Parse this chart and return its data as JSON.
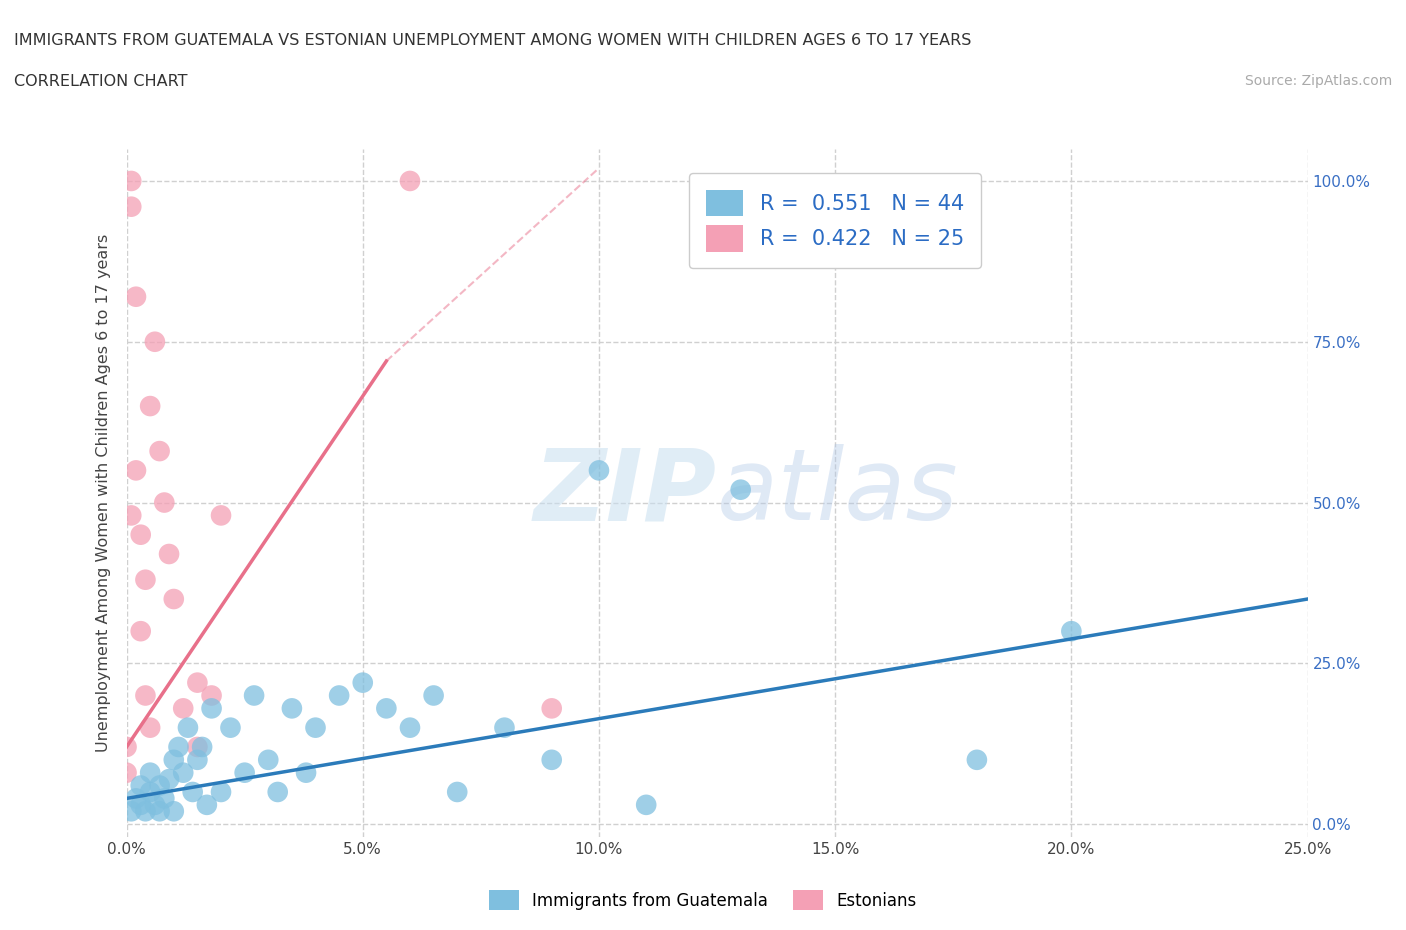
{
  "title_line1": "IMMIGRANTS FROM GUATEMALA VS ESTONIAN UNEMPLOYMENT AMONG WOMEN WITH CHILDREN AGES 6 TO 17 YEARS",
  "title_line2": "CORRELATION CHART",
  "source": "Source: ZipAtlas.com",
  "ylabel": "Unemployment Among Women with Children Ages 6 to 17 years",
  "xlim": [
    0.0,
    0.25
  ],
  "ylim": [
    -0.02,
    1.05
  ],
  "xtick_vals": [
    0.0,
    0.05,
    0.1,
    0.15,
    0.2,
    0.25
  ],
  "ytick_vals": [
    0.0,
    0.25,
    0.5,
    0.75,
    1.0
  ],
  "ytick_right_labels": [
    "0.0%",
    "25.0%",
    "50.0%",
    "75.0%",
    "100.0%"
  ],
  "blue_color": "#7fbfdf",
  "pink_color": "#f4a0b5",
  "blue_line_color": "#2b7bba",
  "pink_line_color": "#e8708a",
  "blue_R": 0.551,
  "blue_N": 44,
  "pink_R": 0.422,
  "pink_N": 25,
  "legend_label_blue": "Immigrants from Guatemala",
  "legend_label_pink": "Estonians",
  "watermark_zip": "ZIP",
  "watermark_atlas": "atlas",
  "grid_color": "#d0d0d0",
  "blue_scatter_x": [
    0.001,
    0.002,
    0.003,
    0.003,
    0.004,
    0.005,
    0.005,
    0.006,
    0.007,
    0.007,
    0.008,
    0.009,
    0.01,
    0.01,
    0.011,
    0.012,
    0.013,
    0.014,
    0.015,
    0.016,
    0.017,
    0.018,
    0.02,
    0.022,
    0.025,
    0.027,
    0.03,
    0.032,
    0.035,
    0.038,
    0.04,
    0.045,
    0.05,
    0.055,
    0.06,
    0.065,
    0.07,
    0.08,
    0.09,
    0.1,
    0.11,
    0.13,
    0.18,
    0.2
  ],
  "blue_scatter_y": [
    0.02,
    0.04,
    0.03,
    0.06,
    0.02,
    0.05,
    0.08,
    0.03,
    0.06,
    0.02,
    0.04,
    0.07,
    0.1,
    0.02,
    0.12,
    0.08,
    0.15,
    0.05,
    0.1,
    0.12,
    0.03,
    0.18,
    0.05,
    0.15,
    0.08,
    0.2,
    0.1,
    0.05,
    0.18,
    0.08,
    0.15,
    0.2,
    0.22,
    0.18,
    0.15,
    0.2,
    0.05,
    0.15,
    0.1,
    0.55,
    0.03,
    0.52,
    0.1,
    0.3
  ],
  "pink_scatter_x": [
    0.0,
    0.0,
    0.001,
    0.001,
    0.001,
    0.002,
    0.002,
    0.003,
    0.003,
    0.004,
    0.004,
    0.005,
    0.005,
    0.006,
    0.007,
    0.008,
    0.009,
    0.01,
    0.012,
    0.015,
    0.015,
    0.018,
    0.02,
    0.06,
    0.09
  ],
  "pink_scatter_y": [
    0.12,
    0.08,
    1.0,
    0.96,
    0.48,
    0.82,
    0.55,
    0.45,
    0.3,
    0.38,
    0.2,
    0.65,
    0.15,
    0.75,
    0.58,
    0.5,
    0.42,
    0.35,
    0.18,
    0.22,
    0.12,
    0.2,
    0.48,
    1.0,
    0.18
  ],
  "blue_trendline": [
    0.0,
    0.25,
    0.04,
    0.35
  ],
  "pink_trendline_solid": [
    0.0,
    0.055,
    0.12,
    0.72
  ],
  "pink_trendline_dash": [
    0.055,
    0.1,
    0.72,
    1.02
  ]
}
